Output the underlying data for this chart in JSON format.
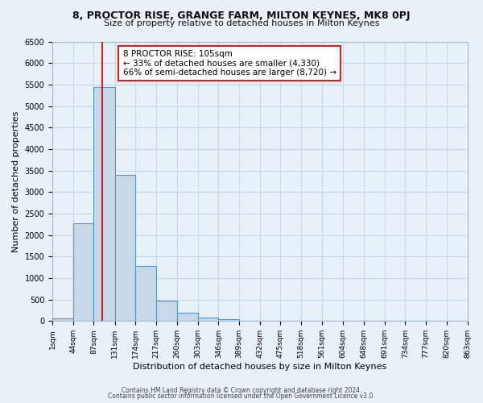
{
  "title": "8, PROCTOR RISE, GRANGE FARM, MILTON KEYNES, MK8 0PJ",
  "subtitle": "Size of property relative to detached houses in Milton Keynes",
  "xlabel": "Distribution of detached houses by size in Milton Keynes",
  "ylabel": "Number of detached properties",
  "bin_edges": [
    1,
    44,
    87,
    131,
    174,
    217,
    260,
    303,
    346,
    389,
    432,
    475,
    518,
    561,
    604,
    648,
    691,
    734,
    777,
    820,
    863
  ],
  "bin_counts": [
    70,
    2270,
    5450,
    3390,
    1290,
    480,
    190,
    80,
    40,
    0,
    0,
    0,
    0,
    0,
    0,
    0,
    0,
    0,
    0,
    0
  ],
  "bar_facecolor": "#c8d8e8",
  "bar_edgecolor": "#5599bb",
  "property_size": 105,
  "vline_color": "#cc2222",
  "annotation_text": "8 PROCTOR RISE: 105sqm\n← 33% of detached houses are smaller (4,330)\n66% of semi-detached houses are larger (8,720) →",
  "annotation_box_edgecolor": "#cc2222",
  "annotation_box_facecolor": "#ffffff",
  "ylim": [
    0,
    6500
  ],
  "yticks": [
    0,
    500,
    1000,
    1500,
    2000,
    2500,
    3000,
    3500,
    4000,
    4500,
    5000,
    5500,
    6000,
    6500
  ],
  "grid_color": "#c8d8e8",
  "background_color": "#e8f0f8",
  "footer_line1": "Contains HM Land Registry data © Crown copyright and database right 2024.",
  "footer_line2": "Contains public sector information licensed under the Open Government Licence v3.0."
}
